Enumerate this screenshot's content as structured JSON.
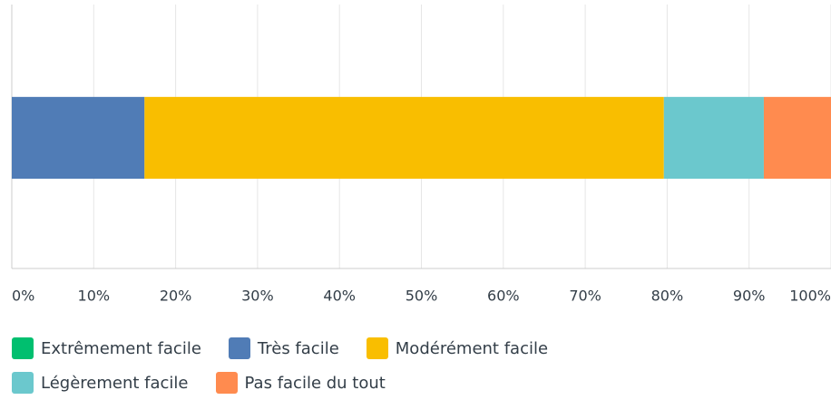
{
  "chart_data": {
    "type": "stacked-bar-horizontal",
    "categories": [
      null
    ],
    "series": [
      {
        "name": "Extrêmement facile",
        "color": "#00bf6f",
        "values": [
          0
        ]
      },
      {
        "name": "Très facile",
        "color": "#507cb6",
        "values": [
          16.2
        ]
      },
      {
        "name": "Modérément facile",
        "color": "#f9be00",
        "values": [
          63.4
        ]
      },
      {
        "name": "Légèrement facile",
        "color": "#6bc8cd",
        "values": [
          12.2
        ]
      },
      {
        "name": "Pas facile du tout",
        "color": "#ff8b4f",
        "values": [
          8.2
        ]
      }
    ],
    "xlim": [
      0,
      100
    ],
    "xticks": [
      {
        "value": 0,
        "label": "0%"
      },
      {
        "value": 10,
        "label": "10%"
      },
      {
        "value": 20,
        "label": "20%"
      },
      {
        "value": 30,
        "label": "30%"
      },
      {
        "value": 40,
        "label": "40%"
      },
      {
        "value": 50,
        "label": "50%"
      },
      {
        "value": 60,
        "label": "60%"
      },
      {
        "value": 70,
        "label": "70%"
      },
      {
        "value": 80,
        "label": "80%"
      },
      {
        "value": 90,
        "label": "90%"
      },
      {
        "value": 100,
        "label": "100%"
      }
    ],
    "grid": true,
    "legend": "bottom"
  }
}
